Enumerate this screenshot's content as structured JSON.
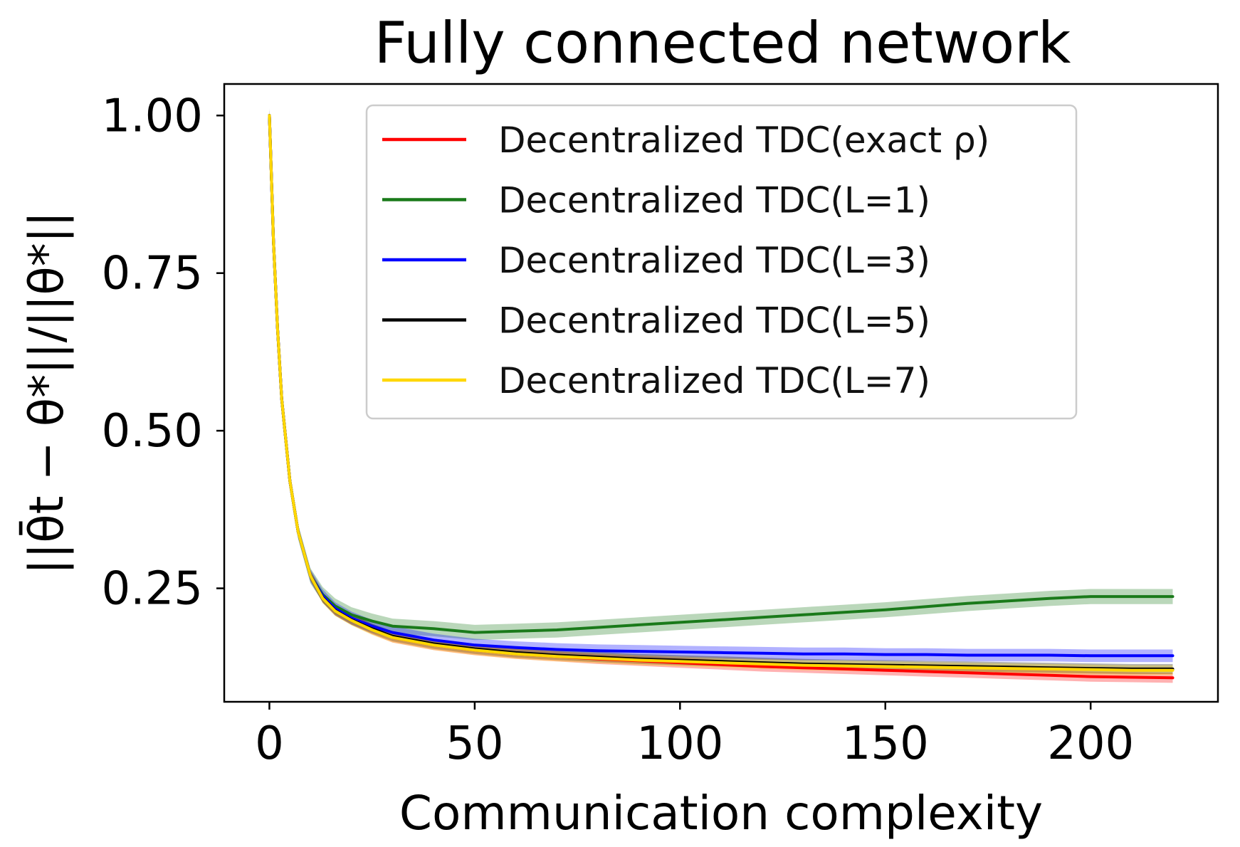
{
  "chart_data": {
    "type": "line",
    "title": "Fully connected network",
    "xlabel": "Communication complexity",
    "ylabel": "||θ̄t − θ*||/||θ*||",
    "xlim": [
      -11,
      231
    ],
    "ylim": [
      0.07,
      1.05
    ],
    "xticks": [
      0,
      50,
      100,
      150,
      200
    ],
    "xtick_labels": [
      "0",
      "50",
      "100",
      "150",
      "200"
    ],
    "yticks": [
      0.25,
      0.5,
      0.75,
      1.0
    ],
    "ytick_labels": [
      "0.25",
      "0.50",
      "0.75",
      "1.00"
    ],
    "grid": false,
    "legend_position": "top-right",
    "series": [
      {
        "name": "Decentralized TDC(exact ρ)",
        "color": "#ff0000",
        "band": 0.008,
        "x": [
          0,
          1,
          2,
          3,
          5,
          7,
          10,
          13,
          16,
          20,
          25,
          30,
          40,
          50,
          60,
          70,
          80,
          90,
          100,
          110,
          120,
          130,
          140,
          150,
          160,
          170,
          180,
          190,
          200,
          210,
          220
        ],
        "y": [
          1.0,
          0.8,
          0.66,
          0.55,
          0.42,
          0.34,
          0.27,
          0.235,
          0.215,
          0.2,
          0.185,
          0.172,
          0.16,
          0.152,
          0.146,
          0.142,
          0.138,
          0.135,
          0.132,
          0.129,
          0.126,
          0.124,
          0.122,
          0.12,
          0.118,
          0.116,
          0.114,
          0.112,
          0.11,
          0.109,
          0.108
        ]
      },
      {
        "name": "Decentralized TDC(L=1)",
        "color": "#1a7a1a",
        "band": 0.012,
        "x": [
          0,
          1,
          2,
          3,
          5,
          7,
          10,
          13,
          16,
          20,
          25,
          30,
          40,
          50,
          60,
          70,
          80,
          90,
          100,
          110,
          120,
          130,
          140,
          150,
          160,
          170,
          180,
          190,
          200,
          210,
          220
        ],
        "y": [
          1.0,
          0.8,
          0.66,
          0.55,
          0.42,
          0.34,
          0.27,
          0.24,
          0.222,
          0.208,
          0.198,
          0.19,
          0.186,
          0.18,
          0.182,
          0.184,
          0.188,
          0.192,
          0.196,
          0.2,
          0.204,
          0.208,
          0.212,
          0.216,
          0.221,
          0.226,
          0.23,
          0.234,
          0.237,
          0.237,
          0.237
        ]
      },
      {
        "name": "Decentralized TDC(L=3)",
        "color": "#0000ff",
        "band": 0.01,
        "x": [
          0,
          1,
          2,
          3,
          5,
          7,
          10,
          13,
          16,
          20,
          25,
          30,
          40,
          50,
          60,
          70,
          80,
          90,
          100,
          110,
          120,
          130,
          140,
          150,
          160,
          170,
          180,
          190,
          200,
          210,
          220
        ],
        "y": [
          1.0,
          0.8,
          0.66,
          0.55,
          0.42,
          0.34,
          0.27,
          0.238,
          0.218,
          0.203,
          0.19,
          0.18,
          0.168,
          0.16,
          0.156,
          0.153,
          0.151,
          0.15,
          0.149,
          0.148,
          0.147,
          0.146,
          0.146,
          0.145,
          0.145,
          0.144,
          0.144,
          0.144,
          0.143,
          0.143,
          0.143
        ]
      },
      {
        "name": "Decentralized TDC(L=5)",
        "color": "#000000",
        "band": 0.008,
        "x": [
          0,
          1,
          2,
          3,
          5,
          7,
          10,
          13,
          16,
          20,
          25,
          30,
          40,
          50,
          60,
          70,
          80,
          90,
          100,
          110,
          120,
          130,
          140,
          150,
          160,
          170,
          180,
          190,
          200,
          210,
          220
        ],
        "y": [
          1.0,
          0.8,
          0.66,
          0.55,
          0.42,
          0.34,
          0.27,
          0.235,
          0.215,
          0.2,
          0.186,
          0.174,
          0.162,
          0.154,
          0.148,
          0.144,
          0.141,
          0.138,
          0.136,
          0.134,
          0.132,
          0.13,
          0.129,
          0.128,
          0.127,
          0.126,
          0.125,
          0.124,
          0.123,
          0.122,
          0.122
        ]
      },
      {
        "name": "Decentralized TDC(L=7)",
        "color": "#ffd700",
        "band": 0.008,
        "x": [
          0,
          1,
          2,
          3,
          5,
          7,
          10,
          13,
          16,
          20,
          25,
          30,
          40,
          50,
          60,
          70,
          80,
          90,
          100,
          110,
          120,
          130,
          140,
          150,
          160,
          170,
          180,
          190,
          200,
          210,
          220
        ],
        "y": [
          1.0,
          0.8,
          0.66,
          0.55,
          0.42,
          0.34,
          0.27,
          0.234,
          0.214,
          0.199,
          0.184,
          0.172,
          0.16,
          0.152,
          0.146,
          0.142,
          0.139,
          0.136,
          0.134,
          0.132,
          0.13,
          0.128,
          0.127,
          0.126,
          0.125,
          0.124,
          0.123,
          0.122,
          0.121,
          0.12,
          0.12
        ]
      }
    ]
  }
}
